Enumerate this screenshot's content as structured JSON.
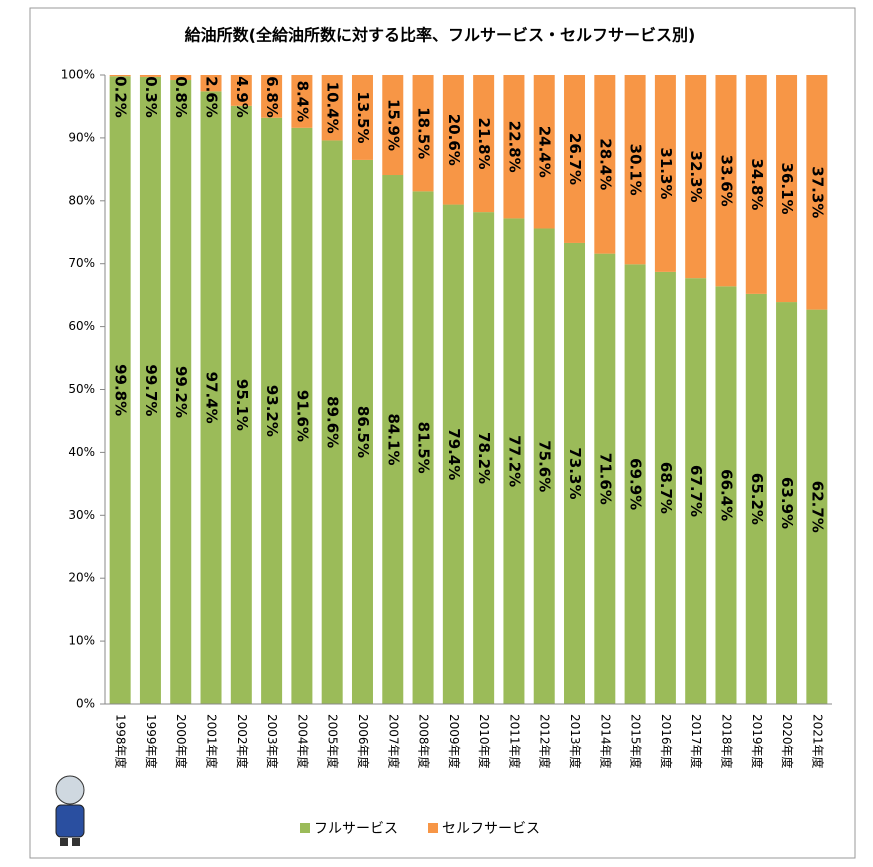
{
  "chart_data": {
    "type": "stacked_bar",
    "title": "給油所数(全給油所数に対する比率、フルサービス・セルフサービス別)",
    "categories": [
      "1998年度",
      "1999年度",
      "2000年度",
      "2001年度",
      "2002年度",
      "2003年度",
      "2004年度",
      "2005年度",
      "2006年度",
      "2007年度",
      "2008年度",
      "2009年度",
      "2010年度",
      "2011年度",
      "2012年度",
      "2013年度",
      "2014年度",
      "2015年度",
      "2016年度",
      "2017年度",
      "2018年度",
      "2019年度",
      "2020年度",
      "2021年度"
    ],
    "series": [
      {
        "name": "フルサービス",
        "color": "#9bbb59",
        "values": [
          99.8,
          99.7,
          99.2,
          97.4,
          95.1,
          93.2,
          91.6,
          89.6,
          86.5,
          84.1,
          81.5,
          79.4,
          78.2,
          77.2,
          75.6,
          73.3,
          71.6,
          69.9,
          68.7,
          67.7,
          66.4,
          65.2,
          63.9,
          62.7
        ],
        "value_labels": [
          "99.8%",
          "99.7%",
          "99.2%",
          "97.4%",
          "95.1%",
          "93.2%",
          "91.6%",
          "89.6%",
          "86.5%",
          "84.1%",
          "81.5%",
          "79.4%",
          "78.2%",
          "77.2%",
          "75.6%",
          "73.3%",
          "71.6%",
          "69.9%",
          "68.7%",
          "67.7%",
          "66.4%",
          "65.2%",
          "63.9%",
          "62.7%"
        ]
      },
      {
        "name": "セルフサービス",
        "color": "#f79646",
        "values": [
          0.2,
          0.3,
          0.8,
          2.6,
          4.9,
          6.8,
          8.4,
          10.4,
          13.5,
          15.9,
          18.5,
          20.6,
          21.8,
          22.8,
          24.4,
          26.7,
          28.4,
          30.1,
          31.3,
          32.3,
          33.6,
          34.8,
          36.1,
          37.3
        ],
        "value_labels": [
          "0.2%",
          "0.3%",
          "0.8%",
          "2.6%",
          "4.9%",
          "6.8%",
          "8.4%",
          "10.4%",
          "13.5%",
          "15.9%",
          "18.5%",
          "20.6%",
          "21.8%",
          "22.8%",
          "24.4%",
          "26.7%",
          "28.4%",
          "30.1%",
          "31.3%",
          "32.3%",
          "33.6%",
          "34.8%",
          "36.1%",
          "37.3%"
        ]
      }
    ],
    "ylim": [
      0,
      100
    ],
    "yticks": [
      {
        "value": 0,
        "label": "0%"
      },
      {
        "value": 10,
        "label": "10%"
      },
      {
        "value": 20,
        "label": "20%"
      },
      {
        "value": 30,
        "label": "30%"
      },
      {
        "value": 40,
        "label": "40%"
      },
      {
        "value": 50,
        "label": "50%"
      },
      {
        "value": 60,
        "label": "60%"
      },
      {
        "value": 70,
        "label": "70%"
      },
      {
        "value": 80,
        "label": "80%"
      },
      {
        "value": 90,
        "label": "90%"
      },
      {
        "value": 100,
        "label": "100%"
      }
    ],
    "grid": false,
    "legend": "bottom"
  }
}
